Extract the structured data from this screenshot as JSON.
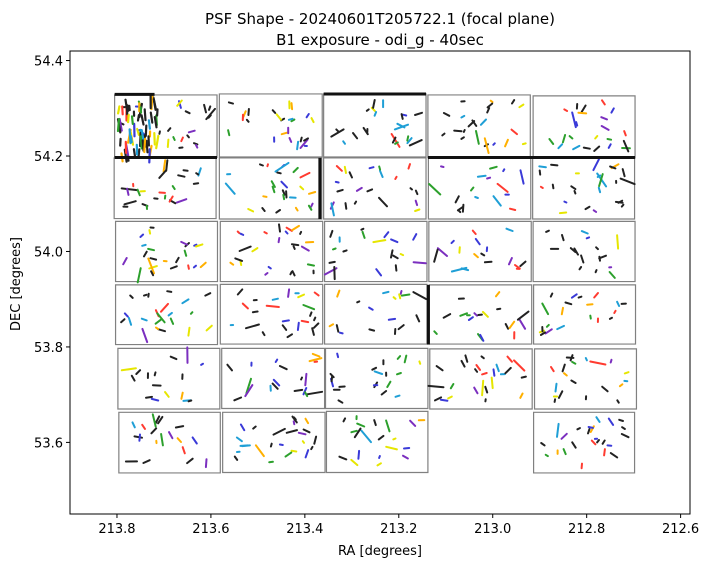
{
  "chart_data": {
    "type": "scatter",
    "title_line1": "PSF Shape - 20240601T205722.1 (focal plane)",
    "title_line2": "B1 exposure - odi_g - 40sec",
    "xlabel": "RA [degrees]",
    "ylabel": "DEC [degrees]",
    "xlim": [
      213.9,
      212.58
    ],
    "ylim": [
      53.45,
      54.42
    ],
    "x_inverted": true,
    "xticks": [
      213.8,
      213.6,
      213.4,
      213.2,
      213.0,
      212.8,
      212.6
    ],
    "xtick_labels": [
      "213.8",
      "213.6",
      "213.4",
      "213.2",
      "213.0",
      "212.8",
      "212.6"
    ],
    "yticks": [
      53.6,
      53.8,
      54.0,
      54.2,
      54.4
    ],
    "ytick_labels": [
      "53.6",
      "53.8",
      "54.0",
      "54.2",
      "54.4"
    ],
    "grid": false,
    "colors": {
      "cell_border": "#808080",
      "whisker_palette": [
        "#222222",
        "#222222",
        "#222222",
        "#222222",
        "#222222",
        "#7b2fbf",
        "#1f9fd6",
        "#2ca02c",
        "#e6e600",
        "#ffb000",
        "#ff3b30",
        "#3a3ad8"
      ]
    },
    "cells": [
      {
        "ra0": 213.805,
        "ra1": 213.587,
        "dec0": 54.197,
        "dec1": 54.328
      },
      {
        "ra0": 213.582,
        "ra1": 213.363,
        "dec0": 54.198,
        "dec1": 54.33
      },
      {
        "ra0": 213.36,
        "ra1": 213.142,
        "dec0": 54.198,
        "dec1": 54.33
      },
      {
        "ra0": 213.138,
        "ra1": 212.92,
        "dec0": 54.197,
        "dec1": 54.328
      },
      {
        "ra0": 212.914,
        "ra1": 212.697,
        "dec0": 54.196,
        "dec1": 54.326
      },
      {
        "ra0": 213.806,
        "ra1": 213.589,
        "dec0": 54.069,
        "dec1": 54.196
      },
      {
        "ra0": 213.582,
        "ra1": 213.364,
        "dec0": 54.068,
        "dec1": 54.196
      },
      {
        "ra0": 213.36,
        "ra1": 213.142,
        "dec0": 54.068,
        "dec1": 54.196
      },
      {
        "ra0": 213.137,
        "ra1": 212.919,
        "dec0": 54.068,
        "dec1": 54.196
      },
      {
        "ra0": 212.915,
        "ra1": 212.698,
        "dec0": 54.068,
        "dec1": 54.196
      },
      {
        "ra0": 213.803,
        "ra1": 213.586,
        "dec0": 53.937,
        "dec1": 54.063
      },
      {
        "ra0": 213.58,
        "ra1": 213.362,
        "dec0": 53.937,
        "dec1": 54.063
      },
      {
        "ra0": 213.358,
        "ra1": 213.14,
        "dec0": 53.937,
        "dec1": 54.063
      },
      {
        "ra0": 213.136,
        "ra1": 212.918,
        "dec0": 53.937,
        "dec1": 54.063
      },
      {
        "ra0": 212.914,
        "ra1": 212.697,
        "dec0": 53.937,
        "dec1": 54.063
      },
      {
        "ra0": 213.803,
        "ra1": 213.586,
        "dec0": 53.805,
        "dec1": 53.93
      },
      {
        "ra0": 213.58,
        "ra1": 213.362,
        "dec0": 53.806,
        "dec1": 53.931
      },
      {
        "ra0": 213.358,
        "ra1": 213.14,
        "dec0": 53.806,
        "dec1": 53.931
      },
      {
        "ra0": 213.135,
        "ra1": 212.917,
        "dec0": 53.806,
        "dec1": 53.93
      },
      {
        "ra0": 212.913,
        "ra1": 212.696,
        "dec0": 53.806,
        "dec1": 53.93
      },
      {
        "ra0": 213.798,
        "ra1": 213.581,
        "dec0": 53.67,
        "dec1": 53.797
      },
      {
        "ra0": 213.577,
        "ra1": 213.358,
        "dec0": 53.671,
        "dec1": 53.797
      },
      {
        "ra0": 213.356,
        "ra1": 213.138,
        "dec0": 53.671,
        "dec1": 53.797
      },
      {
        "ra0": 213.134,
        "ra1": 212.916,
        "dec0": 53.67,
        "dec1": 53.796
      },
      {
        "ra0": 212.911,
        "ra1": 212.694,
        "dec0": 53.67,
        "dec1": 53.796
      },
      {
        "ra0": 213.796,
        "ra1": 213.58,
        "dec0": 53.536,
        "dec1": 53.663
      },
      {
        "ra0": 213.575,
        "ra1": 213.357,
        "dec0": 53.537,
        "dec1": 53.663
      },
      {
        "ra0": 213.354,
        "ra1": 213.138,
        "dec0": 53.537,
        "dec1": 53.665
      },
      {
        "ra0": 212.913,
        "ra1": 212.698,
        "dec0": 53.536,
        "dec1": 53.663
      }
    ],
    "heavy_edges": [
      {
        "ra0": 213.805,
        "ra1": 213.72,
        "dec0": 54.329,
        "dec1": 54.329
      },
      {
        "ra0": 213.805,
        "ra1": 213.587,
        "dec0": 54.197,
        "dec1": 54.197
      },
      {
        "ra0": 213.36,
        "ra1": 213.142,
        "dec0": 54.33,
        "dec1": 54.33
      },
      {
        "ra0": 213.138,
        "ra1": 212.697,
        "dec0": 54.197,
        "dec1": 54.197
      },
      {
        "ra0": 213.368,
        "ra1": 213.368,
        "dec0": 54.068,
        "dec1": 54.196
      },
      {
        "ra0": 213.137,
        "ra1": 213.137,
        "dec0": 53.805,
        "dec1": 53.93
      }
    ]
  }
}
